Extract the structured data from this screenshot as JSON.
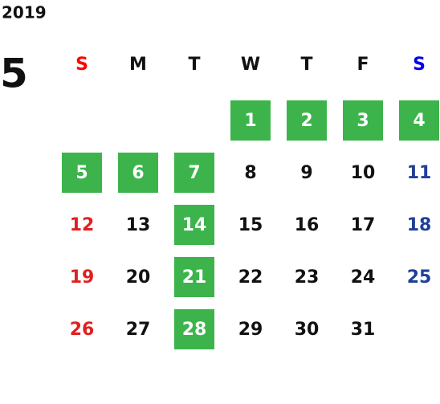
{
  "header": {
    "year": "2019",
    "month": "5"
  },
  "weekdays": [
    "S",
    "M",
    "T",
    "W",
    "T",
    "F",
    "S"
  ],
  "colors": {
    "sunday_header": "#ff0000",
    "saturday_header": "#0000ee",
    "sunday": "#e02020",
    "saturday": "#1f3f99",
    "normal": "#111111",
    "highlight_bg": "#3cb44b",
    "highlight_text": "#ffffff"
  },
  "weeks": [
    [
      null,
      null,
      null,
      {
        "day": "1",
        "highlight": true
      },
      {
        "day": "2",
        "highlight": true
      },
      {
        "day": "3",
        "highlight": true
      },
      {
        "day": "4",
        "highlight": true
      }
    ],
    [
      {
        "day": "5",
        "highlight": true
      },
      {
        "day": "6",
        "highlight": true
      },
      {
        "day": "7",
        "highlight": true
      },
      {
        "day": "8",
        "highlight": false
      },
      {
        "day": "9",
        "highlight": false
      },
      {
        "day": "10",
        "highlight": false
      },
      {
        "day": "11",
        "highlight": false
      }
    ],
    [
      {
        "day": "12",
        "highlight": false
      },
      {
        "day": "13",
        "highlight": false
      },
      {
        "day": "14",
        "highlight": true
      },
      {
        "day": "15",
        "highlight": false
      },
      {
        "day": "16",
        "highlight": false
      },
      {
        "day": "17",
        "highlight": false
      },
      {
        "day": "18",
        "highlight": false
      }
    ],
    [
      {
        "day": "19",
        "highlight": false
      },
      {
        "day": "20",
        "highlight": false
      },
      {
        "day": "21",
        "highlight": true
      },
      {
        "day": "22",
        "highlight": false
      },
      {
        "day": "23",
        "highlight": false
      },
      {
        "day": "24",
        "highlight": false
      },
      {
        "day": "25",
        "highlight": false
      }
    ],
    [
      {
        "day": "26",
        "highlight": false
      },
      {
        "day": "27",
        "highlight": false
      },
      {
        "day": "28",
        "highlight": true
      },
      {
        "day": "29",
        "highlight": false
      },
      {
        "day": "30",
        "highlight": false
      },
      {
        "day": "31",
        "highlight": false
      },
      null
    ]
  ]
}
